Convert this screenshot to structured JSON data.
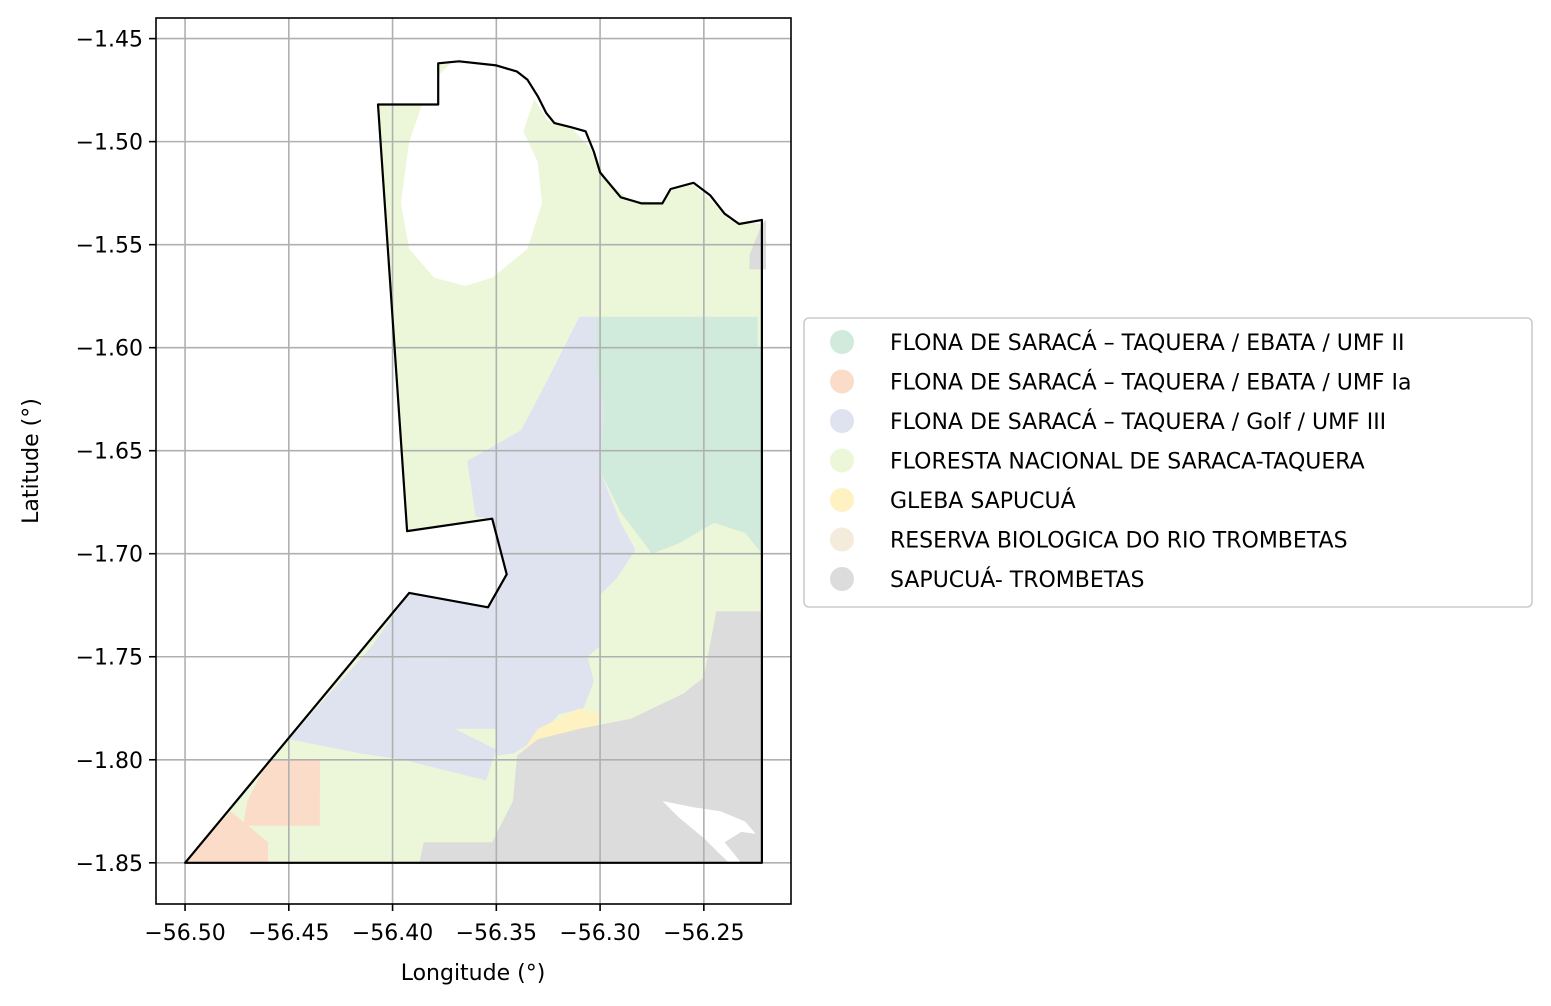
{
  "chart_data": {
    "type": "map",
    "xlabel": "Longitude (°)",
    "ylabel": "Latitude (°)",
    "xlim": [
      -56.514,
      -56.208
    ],
    "ylim": [
      -1.87,
      -1.44
    ],
    "grid": true,
    "legend_position": "right",
    "x_ticks": [
      -56.5,
      -56.45,
      -56.4,
      -56.35,
      -56.3,
      -56.25
    ],
    "x_tick_labels": [
      "−56.50",
      "−56.45",
      "−56.40",
      "−56.35",
      "−56.30",
      "−56.25"
    ],
    "y_ticks": [
      -1.45,
      -1.5,
      -1.55,
      -1.6,
      -1.65,
      -1.7,
      -1.75,
      -1.8,
      -1.85
    ],
    "y_tick_labels": [
      "−1.45",
      "−1.50",
      "−1.55",
      "−1.60",
      "−1.65",
      "−1.70",
      "−1.75",
      "−1.80",
      "−1.85"
    ],
    "legend": [
      {
        "label": "FLONA DE SARACÁ – TAQUERA / EBATA / UMF II",
        "color": "#d0ebdc"
      },
      {
        "label": "FLONA DE SARACÁ – TAQUERA / EBATA / UMF Ia",
        "color": "#fbdcc8"
      },
      {
        "label": "FLONA DE SARACÁ – TAQUERA / Golf / UMF III",
        "color": "#dfe3f0"
      },
      {
        "label": "FLORESTA NACIONAL DE SARACA-TAQUERA",
        "color": "#ecf7da"
      },
      {
        "label": "GLEBA SAPUCUÁ",
        "color": "#fff2c2"
      },
      {
        "label": "RESERVA BIOLOGICA DO RIO TROMBETAS",
        "color": "#f5ebdd"
      },
      {
        "label": "SAPUCUÁ- TROMBETAS",
        "color": "#dcdcdc"
      }
    ],
    "regions": [
      {
        "name": "FLORESTA NACIONAL DE SARACA-TAQUERA",
        "color": "#ecf7da",
        "points": [
          [
            -56.368,
            -1.462
          ],
          [
            -56.35,
            -1.463
          ],
          [
            -56.338,
            -1.47
          ],
          [
            -56.33,
            -1.482
          ],
          [
            -56.325,
            -1.49
          ],
          [
            -56.313,
            -1.494
          ],
          [
            -56.305,
            -1.503
          ],
          [
            -56.296,
            -1.52
          ],
          [
            -56.286,
            -1.528
          ],
          [
            -56.27,
            -1.53
          ],
          [
            -56.265,
            -1.523
          ],
          [
            -56.255,
            -1.521
          ],
          [
            -56.245,
            -1.53
          ],
          [
            -56.238,
            -1.538
          ],
          [
            -56.222,
            -1.54
          ],
          [
            -56.222,
            -1.85
          ],
          [
            -56.5,
            -1.85
          ],
          [
            -56.392,
            -1.719
          ],
          [
            -56.354,
            -1.726
          ],
          [
            -56.345,
            -1.71
          ],
          [
            -56.352,
            -1.683
          ],
          [
            -56.393,
            -1.689
          ],
          [
            -56.407,
            -1.482
          ],
          [
            -56.378,
            -1.482
          ],
          [
            -56.378,
            -1.462
          ]
        ]
      },
      {
        "name": "white-gap-north",
        "color": "#ffffff",
        "points": [
          [
            -56.372,
            -1.462
          ],
          [
            -56.35,
            -1.463
          ],
          [
            -56.337,
            -1.468
          ],
          [
            -56.332,
            -1.48
          ],
          [
            -56.337,
            -1.495
          ],
          [
            -56.33,
            -1.51
          ],
          [
            -56.328,
            -1.53
          ],
          [
            -56.335,
            -1.552
          ],
          [
            -56.352,
            -1.566
          ],
          [
            -56.365,
            -1.57
          ],
          [
            -56.38,
            -1.566
          ],
          [
            -56.392,
            -1.552
          ],
          [
            -56.396,
            -1.53
          ],
          [
            -56.392,
            -1.5
          ],
          [
            -56.385,
            -1.48
          ],
          [
            -56.378,
            -1.468
          ]
        ]
      },
      {
        "name": "FLONA DE SARACÁ – TAQUERA / Golf / UMF III",
        "color": "#dfe3f0",
        "points": [
          [
            -56.31,
            -1.585
          ],
          [
            -56.302,
            -1.585
          ],
          [
            -56.302,
            -1.61
          ],
          [
            -56.298,
            -1.63
          ],
          [
            -56.3,
            -1.66
          ],
          [
            -56.29,
            -1.685
          ],
          [
            -56.283,
            -1.698
          ],
          [
            -56.292,
            -1.712
          ],
          [
            -56.3,
            -1.72
          ],
          [
            -56.3,
            -1.745
          ],
          [
            -56.306,
            -1.75
          ],
          [
            -56.303,
            -1.762
          ],
          [
            -56.308,
            -1.775
          ],
          [
            -56.32,
            -1.778
          ],
          [
            -56.33,
            -1.79
          ],
          [
            -56.342,
            -1.797
          ],
          [
            -56.35,
            -1.798
          ],
          [
            -56.35,
            -1.785
          ],
          [
            -56.37,
            -1.785
          ],
          [
            -56.372,
            -1.752
          ],
          [
            -56.407,
            -1.752
          ],
          [
            -56.41,
            -1.745
          ],
          [
            -56.392,
            -1.719
          ],
          [
            -56.354,
            -1.726
          ],
          [
            -56.345,
            -1.71
          ],
          [
            -56.352,
            -1.683
          ],
          [
            -56.36,
            -1.682
          ],
          [
            -56.364,
            -1.655
          ],
          [
            -56.338,
            -1.64
          ],
          [
            -56.325,
            -1.615
          ]
        ]
      },
      {
        "name": "FLONA DE SARACÁ – TAQUERA / Golf / UMF III",
        "color": "#dfe3f0",
        "points": [
          [
            -56.41,
            -1.745
          ],
          [
            -56.392,
            -1.752
          ],
          [
            -56.372,
            -1.752
          ],
          [
            -56.37,
            -1.785
          ],
          [
            -56.35,
            -1.795
          ],
          [
            -56.355,
            -1.81
          ],
          [
            -56.375,
            -1.805
          ],
          [
            -56.395,
            -1.8
          ],
          [
            -56.415,
            -1.797
          ],
          [
            -56.45,
            -1.79
          ]
        ]
      },
      {
        "name": "FLONA DE SARACÁ – TAQUERA / EBATA / UMF II",
        "color": "#d0ebdc",
        "points": [
          [
            -56.302,
            -1.585
          ],
          [
            -56.224,
            -1.585
          ],
          [
            -56.224,
            -1.6
          ],
          [
            -56.222,
            -1.6
          ],
          [
            -56.222,
            -1.7
          ],
          [
            -56.23,
            -1.69
          ],
          [
            -56.245,
            -1.685
          ],
          [
            -56.262,
            -1.695
          ],
          [
            -56.275,
            -1.7
          ],
          [
            -56.29,
            -1.68
          ],
          [
            -56.3,
            -1.66
          ],
          [
            -56.298,
            -1.63
          ],
          [
            -56.302,
            -1.61
          ]
        ]
      },
      {
        "name": "FLONA DE SARACÁ – TAQUERA / EBATA / UMF Ia",
        "color": "#fbdcc8",
        "points": [
          [
            -56.46,
            -1.8
          ],
          [
            -56.435,
            -1.8
          ],
          [
            -56.435,
            -1.832
          ],
          [
            -56.472,
            -1.832
          ],
          [
            -56.47,
            -1.82
          ]
        ]
      },
      {
        "name": "FLONA DE SARACÁ – TAQUERA / EBATA / UMF Ia",
        "color": "#fbdcc8",
        "points": [
          [
            -56.478,
            -1.825
          ],
          [
            -56.46,
            -1.84
          ],
          [
            -56.46,
            -1.85
          ],
          [
            -56.5,
            -1.85
          ]
        ]
      },
      {
        "name": "GLEBA SAPUCUÁ",
        "color": "#fff2c2",
        "points": [
          [
            -56.33,
            -1.785
          ],
          [
            -56.31,
            -1.775
          ],
          [
            -56.3,
            -1.778
          ],
          [
            -56.303,
            -1.79
          ],
          [
            -56.32,
            -1.8
          ],
          [
            -56.34,
            -1.8
          ]
        ]
      },
      {
        "name": "GLEBA SAPUCUÁ",
        "color": "#fff2c2",
        "points": [
          [
            -56.245,
            -1.83
          ],
          [
            -56.232,
            -1.825
          ],
          [
            -56.225,
            -1.835
          ],
          [
            -56.24,
            -1.84
          ]
        ]
      },
      {
        "name": "SAPUCUÁ- TROMBETAS",
        "color": "#dcdcdc",
        "points": [
          [
            -56.222,
            -1.728
          ],
          [
            -56.244,
            -1.728
          ],
          [
            -56.25,
            -1.76
          ],
          [
            -56.26,
            -1.768
          ],
          [
            -56.285,
            -1.78
          ],
          [
            -56.31,
            -1.785
          ],
          [
            -56.33,
            -1.79
          ],
          [
            -56.34,
            -1.798
          ],
          [
            -56.342,
            -1.82
          ],
          [
            -56.352,
            -1.84
          ],
          [
            -56.385,
            -1.84
          ],
          [
            -56.387,
            -1.85
          ],
          [
            -56.222,
            -1.85
          ]
        ]
      },
      {
        "name": "SAPUCUÁ- TROMBETAS",
        "color": "#dcdcdc",
        "points": [
          [
            -56.22,
            -1.538
          ],
          [
            -56.222,
            -1.54
          ],
          [
            -56.228,
            -1.555
          ],
          [
            -56.228,
            -1.562
          ],
          [
            -56.22,
            -1.562
          ]
        ]
      },
      {
        "name": "white-cut-east",
        "color": "#ffffff",
        "points": [
          [
            -56.27,
            -1.82
          ],
          [
            -56.262,
            -1.828
          ],
          [
            -56.25,
            -1.838
          ],
          [
            -56.238,
            -1.85
          ],
          [
            -56.232,
            -1.85
          ],
          [
            -56.24,
            -1.84
          ],
          [
            -56.232,
            -1.835
          ],
          [
            -56.225,
            -1.836
          ],
          [
            -56.23,
            -1.83
          ],
          [
            -56.242,
            -1.825
          ],
          [
            -56.255,
            -1.823
          ]
        ]
      }
    ],
    "boundary": [
      [
        -56.407,
        -1.482
      ],
      [
        -56.378,
        -1.482
      ],
      [
        -56.378,
        -1.462
      ],
      [
        -56.368,
        -1.461
      ],
      [
        -56.35,
        -1.463
      ],
      [
        -56.34,
        -1.466
      ],
      [
        -56.335,
        -1.47
      ],
      [
        -56.33,
        -1.478
      ],
      [
        -56.326,
        -1.486
      ],
      [
        -56.322,
        -1.491
      ],
      [
        -56.314,
        -1.493
      ],
      [
        -56.307,
        -1.495
      ],
      [
        -56.303,
        -1.505
      ],
      [
        -56.3,
        -1.515
      ],
      [
        -56.29,
        -1.527
      ],
      [
        -56.28,
        -1.53
      ],
      [
        -56.27,
        -1.53
      ],
      [
        -56.266,
        -1.523
      ],
      [
        -56.255,
        -1.52
      ],
      [
        -56.247,
        -1.526
      ],
      [
        -56.24,
        -1.535
      ],
      [
        -56.233,
        -1.54
      ],
      [
        -56.222,
        -1.538
      ],
      [
        -56.222,
        -1.85
      ],
      [
        -56.5,
        -1.85
      ],
      [
        -56.392,
        -1.719
      ],
      [
        -56.354,
        -1.726
      ],
      [
        -56.345,
        -1.71
      ],
      [
        -56.352,
        -1.683
      ],
      [
        -56.393,
        -1.689
      ],
      [
        -56.407,
        -1.482
      ]
    ]
  }
}
